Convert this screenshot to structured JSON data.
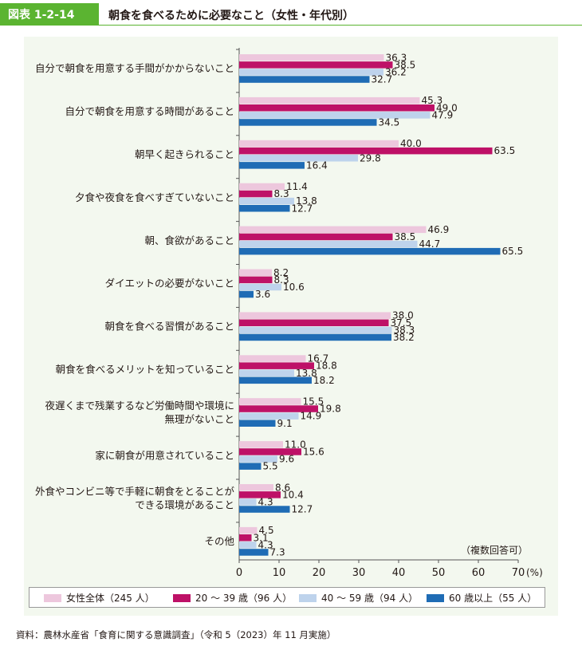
{
  "header": {
    "figure_label": "図表 1-2-14",
    "title": "朝食を食べるために必要なこと（女性・年代別）"
  },
  "note": "（複数回答可）",
  "source": "資料：農林水産省「食育に関する意識調査」（令和 5（2023）年 11 月実施）",
  "colors": {
    "green": "#5bb431",
    "series": [
      "#edc7dd",
      "#be1167",
      "#bed3ec",
      "#1f6cb5"
    ]
  },
  "chart_data": {
    "type": "bar",
    "orientation": "horizontal",
    "categories": [
      [
        "自分で朝食を用意する手間がかからないこと"
      ],
      [
        "自分で朝食を用意する時間があること"
      ],
      [
        "朝早く起きられること"
      ],
      [
        "夕食や夜食を食べすぎていないこと"
      ],
      [
        "朝、食欲があること"
      ],
      [
        "ダイエットの必要がないこと"
      ],
      [
        "朝食を食べる習慣があること"
      ],
      [
        "朝食を食べるメリットを知っていること"
      ],
      [
        "夜遅くまで残業するなど労働時間や環境に",
        "無理がないこと"
      ],
      [
        "家に朝食が用意されていること"
      ],
      [
        "外食やコンビニ等で手軽に朝食をとることが",
        "できる環境があること"
      ],
      [
        "その他"
      ]
    ],
    "series": [
      {
        "name": "女性全体（245 人）",
        "values": [
          36.3,
          45.3,
          40.0,
          11.4,
          46.9,
          8.2,
          38.0,
          16.7,
          15.5,
          11.0,
          8.6,
          4.5
        ]
      },
      {
        "name": "20 ～ 39 歳（96 人）",
        "values": [
          38.5,
          49.0,
          63.5,
          8.3,
          38.5,
          8.3,
          37.5,
          18.8,
          19.8,
          15.6,
          10.4,
          3.1
        ]
      },
      {
        "name": "40 ～ 59 歳（94 人）",
        "values": [
          36.2,
          47.9,
          29.8,
          13.8,
          44.7,
          10.6,
          38.3,
          13.8,
          14.9,
          9.6,
          4.3,
          4.3
        ]
      },
      {
        "name": "60 歳以上（55 人）",
        "values": [
          32.7,
          34.5,
          16.4,
          12.7,
          65.5,
          3.6,
          38.2,
          18.2,
          9.1,
          5.5,
          12.7,
          7.3
        ]
      }
    ],
    "x_ticks": [
      "0",
      "10",
      "20",
      "30",
      "40",
      "50",
      "60",
      "70"
    ],
    "x_unit": "(%)",
    "xlim": [
      0,
      70
    ],
    "legend_position": "bottom"
  }
}
